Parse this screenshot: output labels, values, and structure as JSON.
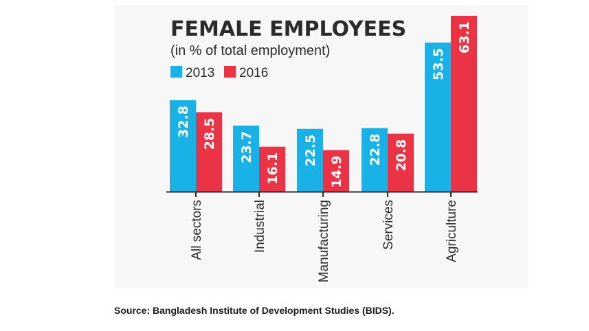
{
  "chart_data": {
    "type": "bar",
    "title": "FEMALE EMPLOYEES",
    "subtitle": "(in % of total employment)",
    "categories": [
      "All sectors",
      "Industrial",
      "Manufacturing",
      "Services",
      "Agriculture"
    ],
    "series": [
      {
        "name": "2013",
        "color": "#1ab1e6",
        "values": [
          32.8,
          23.7,
          22.5,
          22.8,
          53.5
        ],
        "labels": [
          "32.8",
          "23.7",
          "22.5",
          "22.8",
          "53.5"
        ]
      },
      {
        "name": "2016",
        "color": "#ea3344",
        "values": [
          28.5,
          16.1,
          14.9,
          20.8,
          63.1
        ],
        "labels": [
          "28.5",
          "16.1",
          "14.9",
          "20.8",
          "63.1"
        ]
      }
    ],
    "ylim": [
      0,
      63.1
    ],
    "grid": false,
    "legend_placement": "top-left",
    "value_labels": "inside-bar-vertical",
    "category_labels": "vertical"
  },
  "source": "Source: Bangladesh Institute of Development Studies (BIDS)."
}
